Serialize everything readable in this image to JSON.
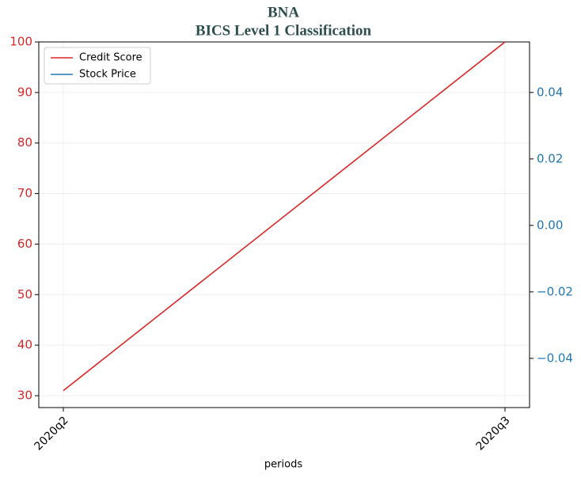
{
  "chart_data": {
    "type": "line",
    "title": "BNA",
    "subtitle": "BICS Level 1 Classification",
    "xlabel": "periods",
    "categories": [
      "2020q2",
      "2020q3"
    ],
    "series": [
      {
        "name": "Credit Score",
        "color": "#d62728",
        "values": [
          31,
          100
        ],
        "axis": "y"
      },
      {
        "name": "Stock Price",
        "color": "#1f77b4",
        "values": [
          null,
          null
        ],
        "axis": "y2"
      }
    ],
    "ylim": [
      27.65,
      100
    ],
    "yticks": [
      30,
      40,
      50,
      60,
      70,
      80,
      90,
      100
    ],
    "y2lim": [
      -0.0548,
      0.0552
    ],
    "y2ticks": [
      {
        "value": -0.04,
        "label": "−0.04"
      },
      {
        "value": -0.02,
        "label": "−0.02"
      },
      {
        "value": 0,
        "label": "0.00"
      },
      {
        "value": 0.02,
        "label": "0.02"
      },
      {
        "value": 0.04,
        "label": "0.04"
      }
    ],
    "grid": true,
    "legend": "upper left"
  }
}
